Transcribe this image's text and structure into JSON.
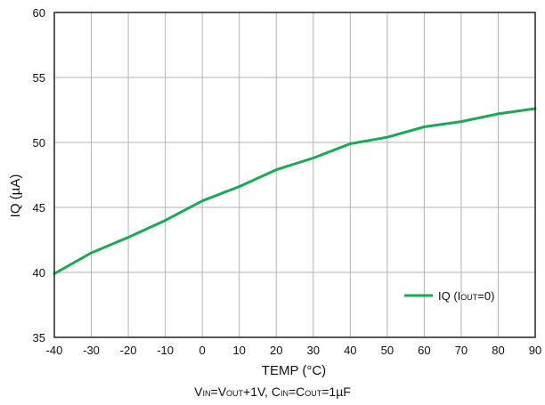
{
  "chart_data": {
    "type": "line",
    "title": "",
    "xlabel": "TEMP (°C)",
    "ylabel": "IQ (µA)",
    "xlim": [
      -40,
      90
    ],
    "ylim": [
      35,
      60
    ],
    "x_ticks": [
      -40,
      -30,
      -20,
      -10,
      0,
      10,
      20,
      30,
      40,
      50,
      60,
      70,
      80,
      90
    ],
    "y_ticks": [
      35,
      40,
      45,
      50,
      55,
      60
    ],
    "x_tick_labels": [
      "-40",
      "-30",
      "-20",
      "-10",
      "0",
      "10",
      "20",
      "30",
      "40",
      "50",
      "60",
      "70",
      "80",
      "90"
    ],
    "y_tick_labels": [
      "35",
      "40",
      "45",
      "50",
      "55",
      "60"
    ],
    "grid": true,
    "legend_position": "bottom-right",
    "series": [
      {
        "name": "IQ (IOUT=0)",
        "legend_label": {
          "base": "IQ (I",
          "sub": "OUT",
          "tail": "=0)"
        },
        "color": "#1aaa55",
        "x": [
          -40,
          -30,
          -20,
          -10,
          0,
          10,
          20,
          30,
          40,
          50,
          60,
          70,
          80,
          90
        ],
        "y": [
          39.9,
          41.5,
          42.7,
          44.0,
          45.5,
          46.6,
          47.9,
          48.8,
          49.9,
          50.4,
          51.2,
          51.6,
          52.2,
          52.6
        ]
      }
    ],
    "caption": {
      "vin": "V",
      "vin_sub": "IN",
      "eq1": "=V",
      "vout_sub": "OUT",
      "mid": "+1V, C",
      "cin_sub": "IN",
      "eq2": "=C",
      "cout_sub": "OUT",
      "tail": "=1µF"
    }
  }
}
